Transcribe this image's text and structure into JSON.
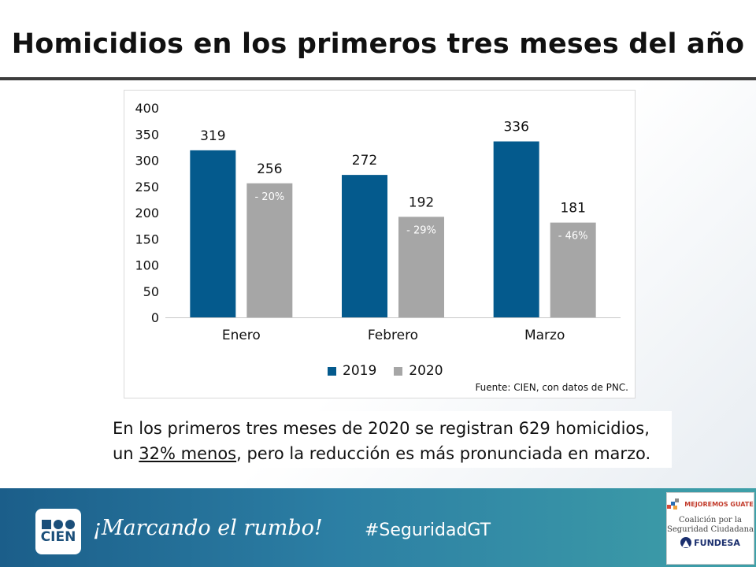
{
  "slide": {
    "title": "Homicidios en los primeros tres meses del año",
    "caption_line1": "En los primeros tres meses de 2020 se registran 629 homicidios,",
    "caption_line2_pre": "un ",
    "caption_line2_emph": "32% menos",
    "caption_line2_post": ", pero la reducción es más pronunciada en marzo."
  },
  "chart_data": {
    "type": "bar",
    "categories": [
      "Enero",
      "Febrero",
      "Marzo"
    ],
    "series": [
      {
        "name": "2019",
        "values": [
          319,
          272,
          336
        ],
        "color": "#045a8d"
      },
      {
        "name": "2020",
        "values": [
          256,
          192,
          181
        ],
        "color": "#a6a6a6"
      }
    ],
    "change_labels": [
      "- 20%",
      "- 29%",
      "- 46%"
    ],
    "ylim": [
      0,
      400
    ],
    "yticks": [
      0,
      50,
      100,
      150,
      200,
      250,
      300,
      350,
      400
    ],
    "source": "Fuente: CIEN, con datos de PNC.",
    "legend_position": "bottom-left"
  },
  "footer": {
    "logo_text": "CIEN",
    "slogan": "¡Marcando el rumbo!",
    "hashtag": "#SeguridadGT",
    "partner_top": "MEJOREMOS GUATE",
    "partner_name_line1": "Coalición por la",
    "partner_name_line2": "Seguridad Ciudadana",
    "partner_bottom": "FUNDESA"
  }
}
